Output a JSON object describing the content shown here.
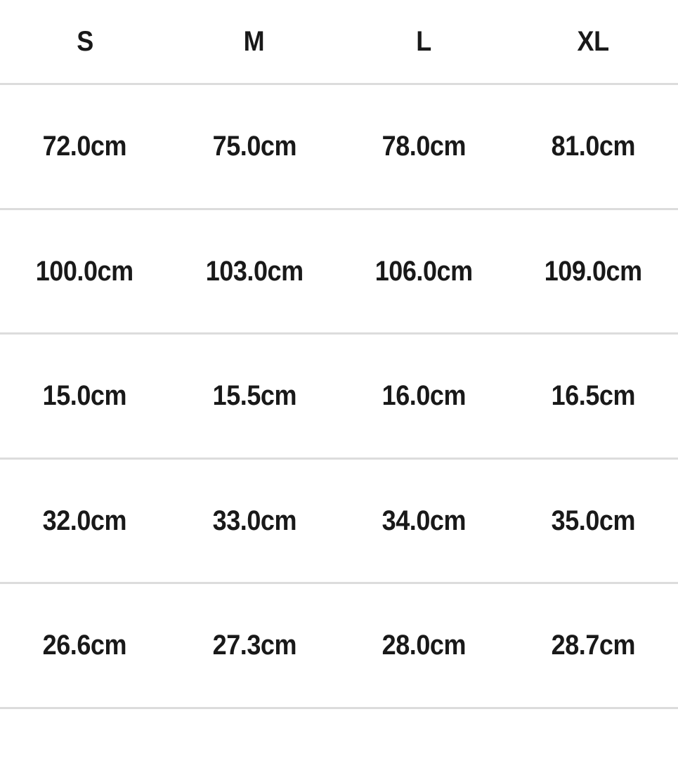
{
  "size_chart": {
    "columns": [
      "S",
      "M",
      "L",
      "XL"
    ],
    "rows": [
      [
        "72.0cm",
        "75.0cm",
        "78.0cm",
        "81.0cm"
      ],
      [
        "100.0cm",
        "103.0cm",
        "106.0cm",
        "109.0cm"
      ],
      [
        "15.0cm",
        "15.5cm",
        "16.0cm",
        "16.5cm"
      ],
      [
        "32.0cm",
        "33.0cm",
        "34.0cm",
        "35.0cm"
      ],
      [
        "26.6cm",
        "27.3cm",
        "28.0cm",
        "28.7cm"
      ]
    ],
    "unit": "cm"
  },
  "colors": {
    "text": "#191919",
    "divider": "#dcdcdc",
    "background": "#ffffff"
  }
}
